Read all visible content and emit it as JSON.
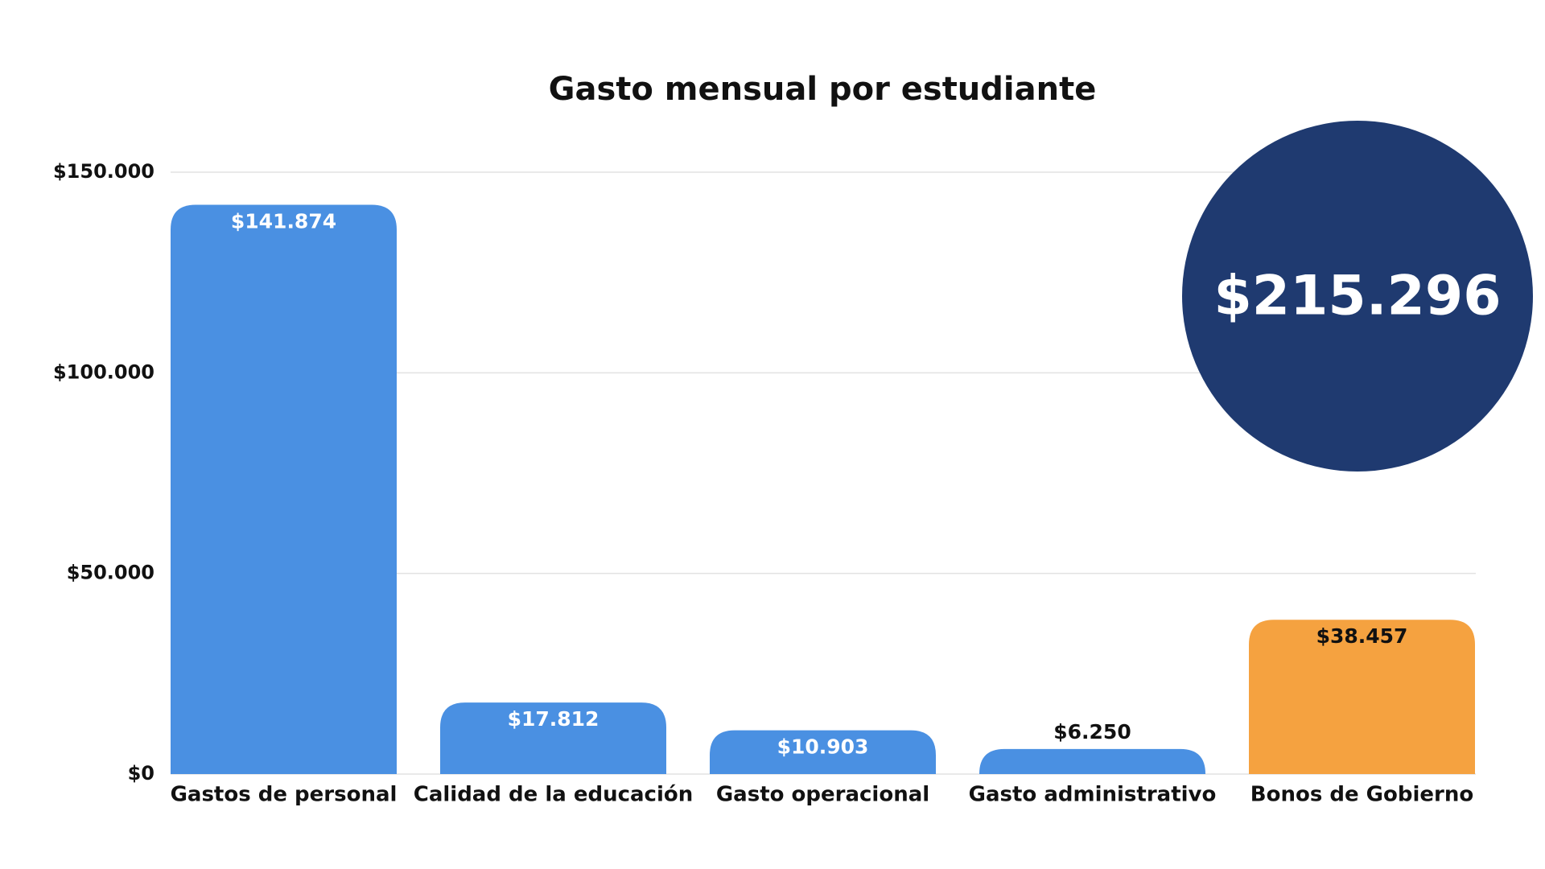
{
  "chart_data": {
    "type": "bar",
    "title": "Gasto mensual por estudiante",
    "categories": [
      "Gastos de personal",
      "Calidad de la educación",
      "Gasto operacional",
      "Gasto administrativo",
      "Bonos de Gobierno"
    ],
    "values": [
      141874,
      17812,
      10903,
      6250,
      38457
    ],
    "value_labels": [
      "$141.874",
      "$17.812",
      "$10.903",
      "$6.250",
      "$38.457"
    ],
    "colors": [
      "#4a90e2",
      "#4a90e2",
      "#4a90e2",
      "#4a90e2",
      "#f5a240"
    ],
    "ylim": [
      0,
      150000
    ],
    "yticks": [
      {
        "value": 0,
        "label": "$0"
      },
      {
        "value": 50000,
        "label": "$50.000"
      },
      {
        "value": 100000,
        "label": "$100.000"
      },
      {
        "value": 150000,
        "label": "$150.000"
      }
    ],
    "grid": true,
    "annotation": "$215.296",
    "annotation_color": "#1f3a70"
  }
}
